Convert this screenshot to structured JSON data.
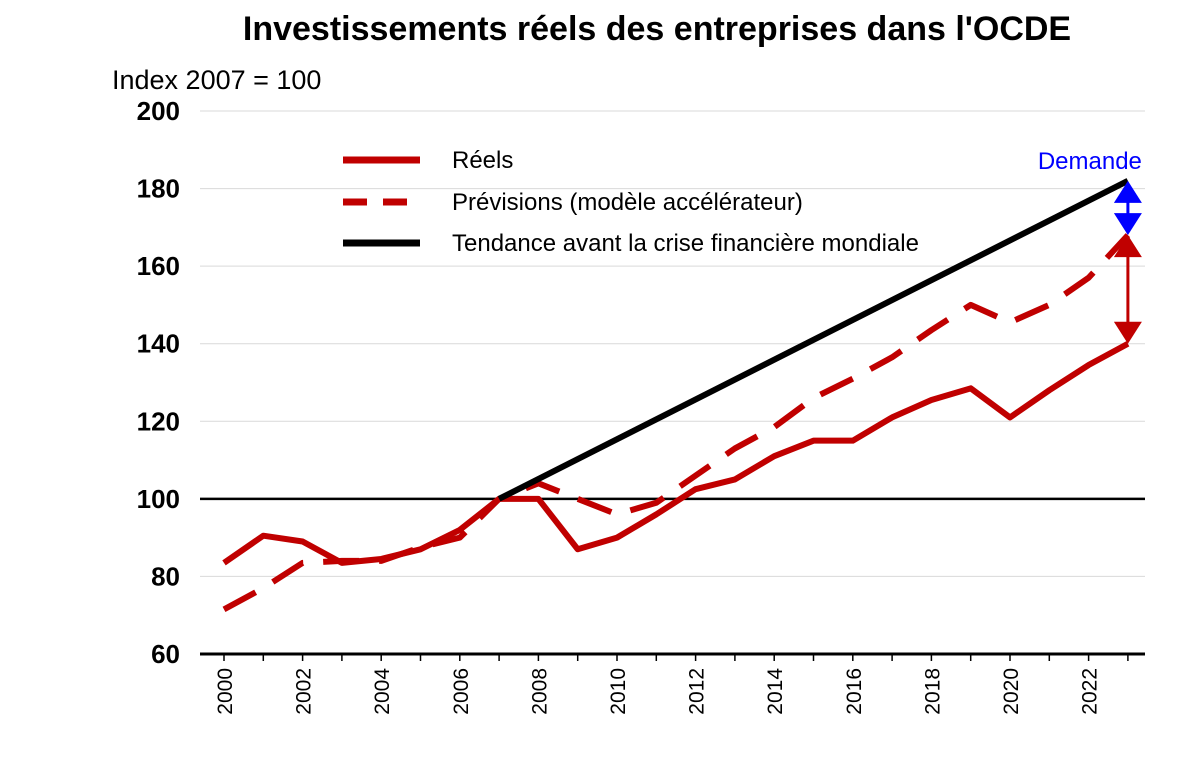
{
  "chart_data": {
    "type": "line",
    "title": "Investissements réels des entreprises dans l'OCDE",
    "ylabel": "Index 2007 = 100",
    "xlabel": "",
    "ylim": [
      60,
      200
    ],
    "yticks": [
      "200",
      "180",
      "160",
      "140",
      "120",
      "100",
      "80",
      "60"
    ],
    "xtick_labels": [
      "2000",
      "2002",
      "2004",
      "2006",
      "2008",
      "2010",
      "2012",
      "2014",
      "2016",
      "2018",
      "2020",
      "2022"
    ],
    "x": [
      2000,
      2001,
      2002,
      2003,
      2004,
      2005,
      2006,
      2007,
      2008,
      2009,
      2010,
      2011,
      2012,
      2013,
      2014,
      2015,
      2016,
      2017,
      2018,
      2019,
      2020,
      2021,
      2022,
      2023
    ],
    "reference_line": 100,
    "grid": "horizontal",
    "legend_position": "top-center",
    "series": [
      {
        "name": "Réels",
        "style": "solid",
        "color": "#c00000",
        "values": [
          83.5,
          90.5,
          89,
          83.5,
          84.5,
          87,
          92,
          100,
          100,
          87,
          90,
          96,
          102.5,
          105,
          111,
          115,
          115,
          121,
          125.5,
          128.5,
          121,
          128,
          134.5,
          140
        ]
      },
      {
        "name": "Prévisions (modèle accélérateur)",
        "style": "dashed",
        "color": "#c00000",
        "values": [
          71.5,
          77,
          83.5,
          84,
          84,
          87.5,
          90,
          100,
          104,
          100,
          96,
          99,
          106,
          113,
          118.5,
          126,
          131,
          136.5,
          143.5,
          150,
          145.5,
          150,
          157,
          168
        ]
      },
      {
        "name": "Tendance avant la crise financière mondiale",
        "style": "solid",
        "color": "#000000",
        "x": [
          2007,
          2023
        ],
        "values": [
          100,
          182
        ]
      }
    ],
    "annotations": [
      {
        "label": "Demande",
        "color": "#0000ff",
        "x": 2023,
        "from": 182,
        "to": 168
      },
      {
        "label": "",
        "color": "#c00000",
        "x": 2023,
        "from": 168,
        "to": 140
      }
    ]
  }
}
